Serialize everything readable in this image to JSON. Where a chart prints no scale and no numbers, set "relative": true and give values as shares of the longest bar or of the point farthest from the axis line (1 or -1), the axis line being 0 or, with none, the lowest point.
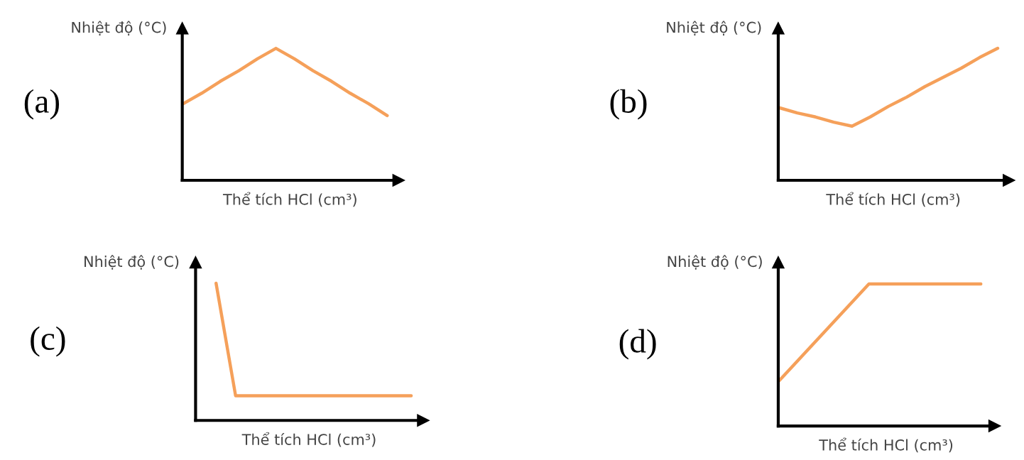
{
  "chart_data": [
    {
      "type": "line",
      "title": "(a)",
      "xlabel": "Thể tích HCl (cm³)",
      "ylabel": "Nhiệt độ (°C)",
      "relative": true,
      "categories": [
        null,
        null,
        null,
        null,
        null,
        null,
        null,
        null,
        null,
        null,
        null,
        null
      ],
      "series": [
        {
          "color": "#f5a05a",
          "values": [
            0.58,
            0.66,
            0.75,
            0.83,
            0.92,
            1.0,
            0.92,
            0.83,
            0.75,
            0.66,
            0.58,
            0.49
          ]
        }
      ]
    },
    {
      "type": "line",
      "title": "(b)",
      "xlabel": "Thể tích HCl (cm³)",
      "ylabel": "Nhiệt độ (°C)",
      "relative": true,
      "categories": [
        null,
        null,
        null,
        null,
        null,
        null,
        null,
        null,
        null,
        null,
        null,
        null,
        null
      ],
      "series": [
        {
          "color": "#f5a05a",
          "values": [
            0.55,
            0.51,
            0.48,
            0.44,
            0.41,
            0.48,
            0.56,
            0.63,
            0.71,
            0.78,
            0.85,
            0.93,
            1.0
          ]
        }
      ]
    },
    {
      "type": "line",
      "title": "(c)",
      "xlabel": "Thể tích HCl (cm³)",
      "ylabel": "Nhiệt độ (°C)",
      "relative": true,
      "categories": [
        null,
        null,
        null,
        null,
        null,
        null,
        null,
        null,
        null,
        null,
        null,
        null
      ],
      "series": [
        {
          "color": "#f5a05a",
          "values": [
            null,
            1.0,
            0.18,
            0.18,
            0.18,
            0.18,
            0.18,
            0.18,
            0.18,
            0.18,
            0.18,
            0.18
          ]
        }
      ]
    },
    {
      "type": "line",
      "title": "(d)",
      "xlabel": "Thể tích HCl (cm³)",
      "ylabel": "Nhiệt độ (°C)",
      "relative": true,
      "categories": [
        null,
        null,
        null,
        null,
        null,
        null,
        null,
        null,
        null,
        null
      ],
      "series": [
        {
          "color": "#f5a05a",
          "values": [
            0.32,
            0.49,
            0.66,
            0.83,
            1.0,
            1.0,
            1.0,
            1.0,
            1.0,
            1.0
          ]
        }
      ]
    }
  ]
}
